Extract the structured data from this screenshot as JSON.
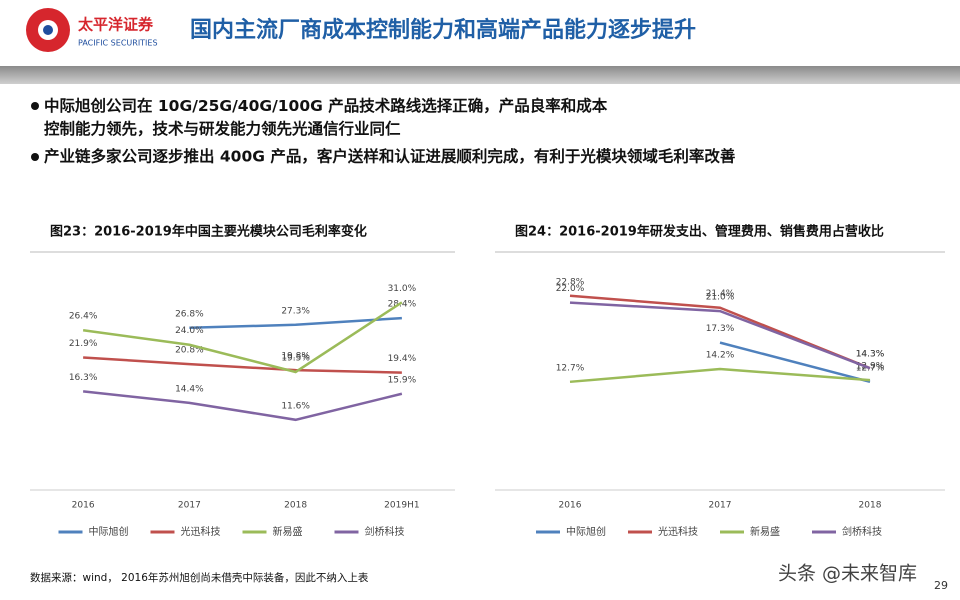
{
  "header": {
    "logo_cn": "太平洋证券",
    "logo_en": "PACIFIC SECURITIES",
    "title": "国内主流厂商成本控制能力和高端产品能力逐步提升"
  },
  "bullets": [
    "中际旭创公司在 10G/25G/40G/100G 产品技术路线选择正确，产品良率和成本控制能力领先，技术与研发能力领先光通信行业同仁",
    "产业链多家公司逐步推出 400G 产品，客户送样和认证进展顺利完成，有利于光模块领域毛利率改善"
  ],
  "chart_data": [
    {
      "type": "line",
      "title": "图23：2016-2019年中国主要光模块公司毛利率变化",
      "categories": [
        "2016",
        "2017",
        "2018",
        "2019H1"
      ],
      "ylim": [
        0,
        38
      ],
      "series": [
        {
          "name": "中际旭创",
          "color": "#4f81bd",
          "values": [
            null,
            26.8,
            27.3,
            28.4
          ],
          "value_labels": [
            null,
            "26.8%",
            "27.3%",
            "28.4%"
          ]
        },
        {
          "name": "光迅科技",
          "color": "#c0504d",
          "values": [
            21.9,
            20.8,
            19.8,
            19.4
          ],
          "value_labels": [
            "21.9%",
            "20.8%",
            "19.8%",
            "19.4%"
          ]
        },
        {
          "name": "新易盛",
          "color": "#9bbb59",
          "values": [
            26.4,
            24.0,
            19.5,
            31.0
          ],
          "value_labels": [
            "26.4%",
            "24.0%",
            "19.5%",
            "31.0%"
          ]
        },
        {
          "name": "剑桥科技",
          "color": "#8064a2",
          "values": [
            16.3,
            14.4,
            11.6,
            15.9
          ],
          "value_labels": [
            "16.3%",
            "14.4%",
            "11.6%",
            "15.9%"
          ]
        }
      ]
    },
    {
      "type": "line",
      "title": "图24：2016-2019年研发支出、管理费用、销售费用占营收比",
      "categories": [
        "2016",
        "2017",
        "2018"
      ],
      "ylim": [
        0,
        27
      ],
      "series": [
        {
          "name": "中际旭创",
          "color": "#4f81bd",
          "values": [
            null,
            17.3,
            12.7
          ],
          "value_labels": [
            null,
            "17.3%",
            "12.7%"
          ]
        },
        {
          "name": "光迅科技",
          "color": "#c0504d",
          "values": [
            22.8,
            21.4,
            14.3
          ],
          "value_labels": [
            "22.8%",
            "21.4%",
            "14.3%"
          ]
        },
        {
          "name": "新易盛",
          "color": "#9bbb59",
          "values": [
            12.7,
            14.2,
            12.9
          ],
          "value_labels": [
            "12.7%",
            "14.2%",
            "12.9%"
          ]
        },
        {
          "name": "剑桥科技",
          "color": "#8064a2",
          "values": [
            22.0,
            21.0,
            14.3
          ],
          "value_labels": [
            "22.0%",
            "21.0%",
            "14.3%"
          ]
        }
      ]
    }
  ],
  "source": "数据来源：wind， 2016年苏州旭创尚未借壳中际装备，因此不纳入上表",
  "page_number": "29",
  "watermark": "头条 @未来智库"
}
